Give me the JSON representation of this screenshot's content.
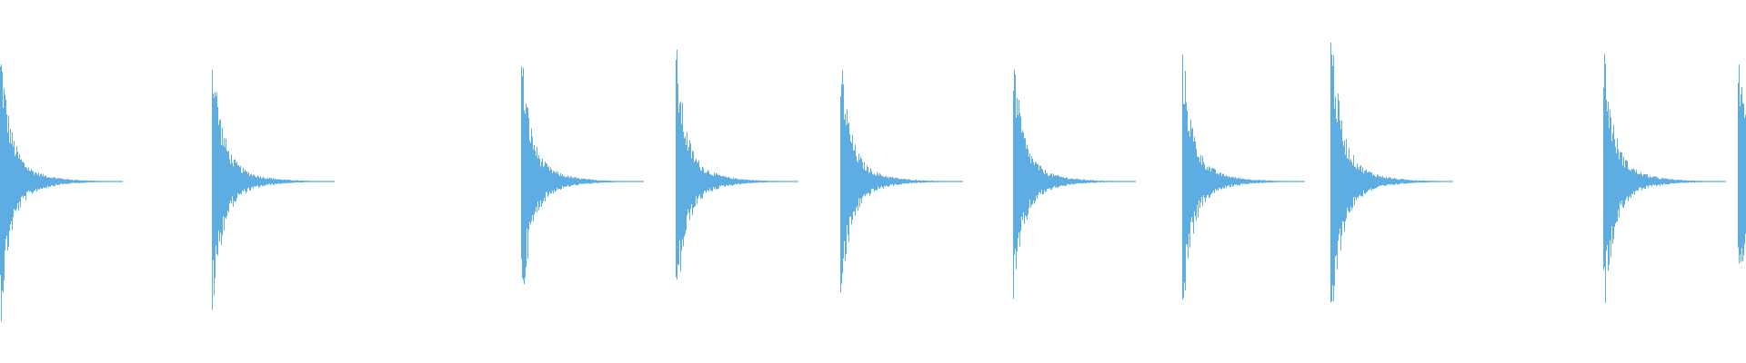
{
  "chart_data": {
    "type": "area",
    "description_kind": "audio-waveform",
    "color": "#5dade2",
    "background": "#ffffff",
    "axes_visible": false,
    "grid": false,
    "amplitude_range": [
      -1,
      1
    ],
    "onsets_fraction_of_clip": [
      0.0,
      0.1213,
      0.2985,
      0.3871,
      0.4815,
      0.5804,
      0.6771,
      0.7621,
      0.9184,
      0.9955
    ],
    "peak_amplitudes": [
      0.75,
      0.74,
      0.7,
      0.72,
      0.69,
      0.68,
      0.72,
      0.87,
      0.74,
      0.66
    ],
    "decay_length_fraction_of_clip": 0.037
  }
}
